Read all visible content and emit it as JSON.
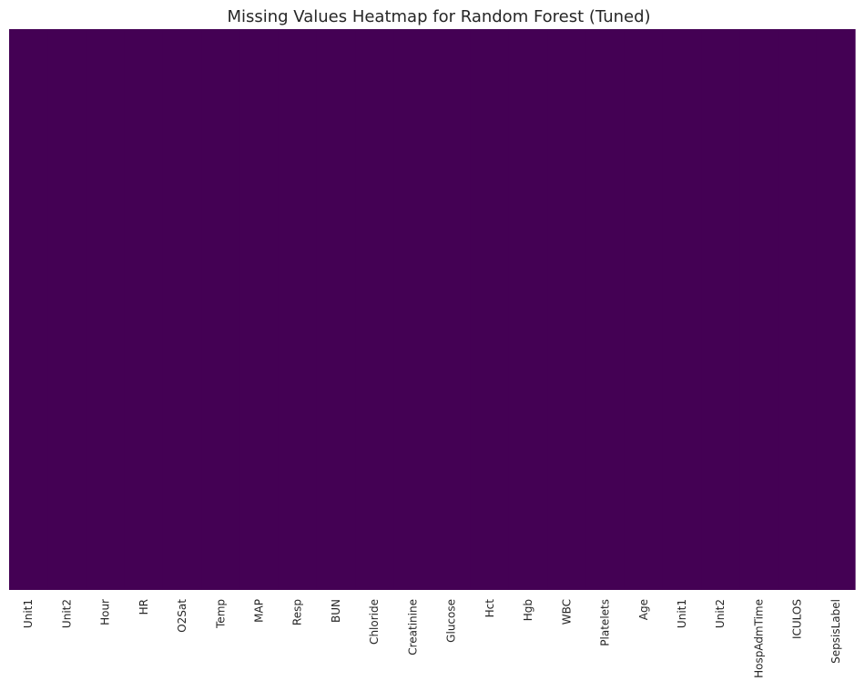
{
  "chart_data": {
    "type": "heatmap",
    "title": "Missing Values Heatmap for Random Forest (Tuned)",
    "xlabel": "",
    "ylabel": "",
    "x_categories": [
      "Unit1",
      "Unit2",
      "Hour",
      "HR",
      "O2Sat",
      "Temp",
      "MAP",
      "Resp",
      "BUN",
      "Chloride",
      "Creatinine",
      "Glucose",
      "Hct",
      "Hgb",
      "WBC",
      "Platelets",
      "Age",
      "Unit1",
      "Unit2",
      "HospAdmTime",
      "ICULOS",
      "SepsisLabel"
    ],
    "missing_fraction": [
      0,
      0,
      0,
      0,
      0,
      0,
      0,
      0,
      0,
      0,
      0,
      0,
      0,
      0,
      0,
      0,
      0,
      0,
      0,
      0,
      0,
      0
    ],
    "y_tick_labels": "none",
    "colorbar": false,
    "grid": false,
    "colormap": "viridis"
  },
  "colors": {
    "not_missing": "#440154",
    "missing": "#fde725",
    "text": "#262626",
    "background": "#ffffff"
  }
}
